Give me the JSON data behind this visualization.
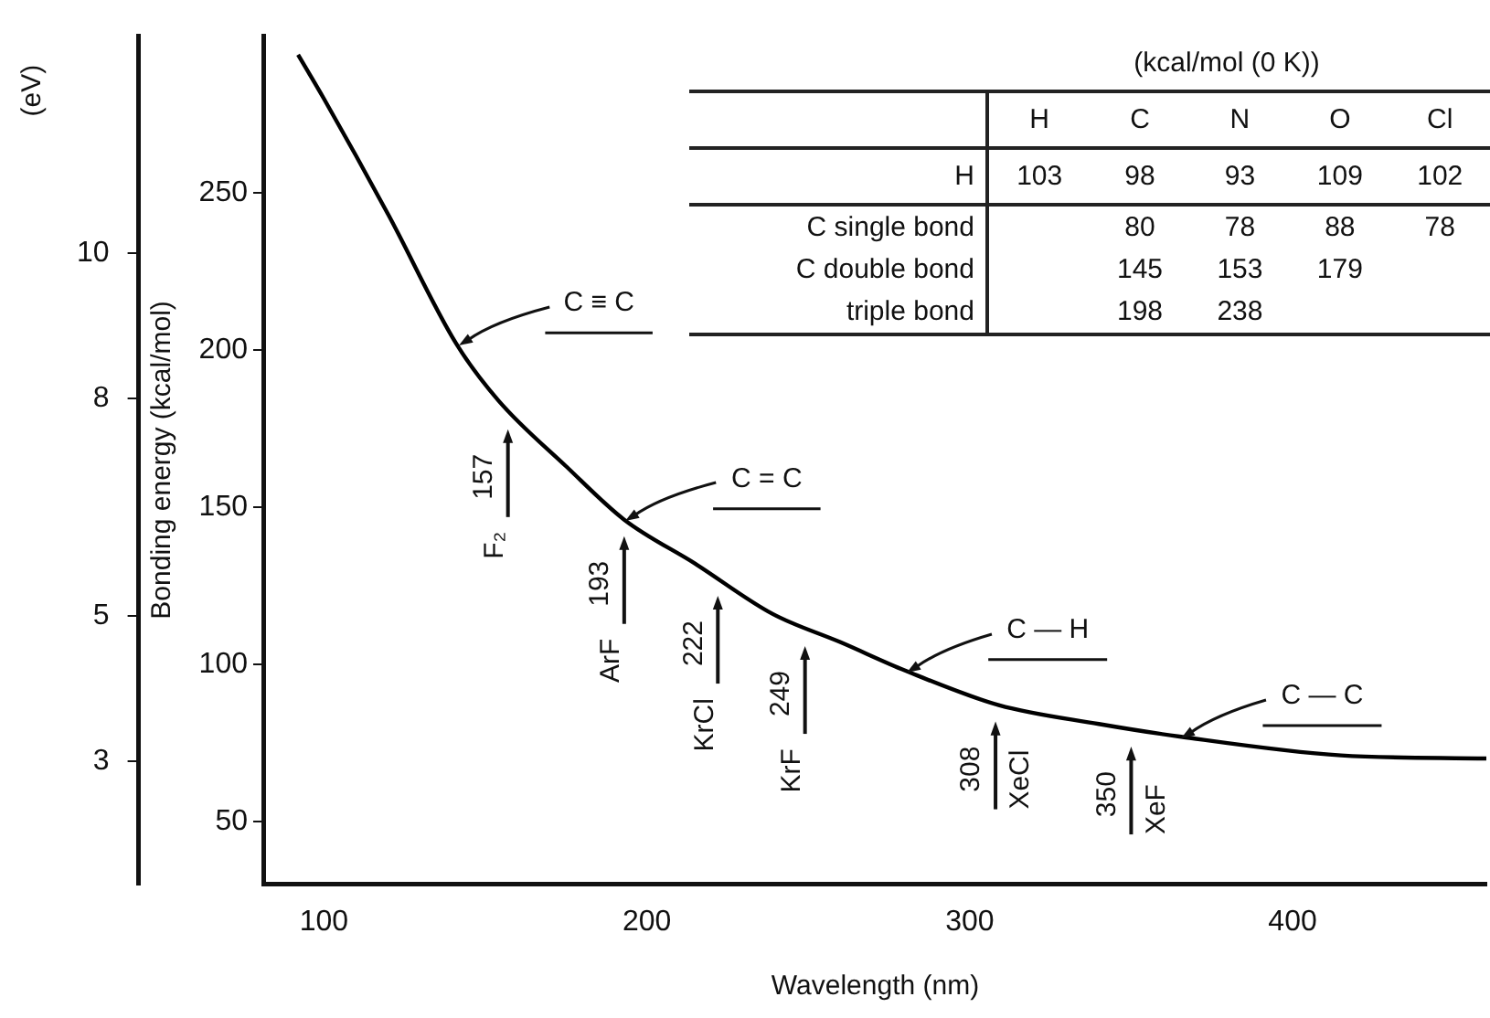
{
  "chart_data": [
    {
      "type": "line",
      "xlabel": "Wavelength (nm)",
      "ylabel": "Bonding energy (kcal/mol)",
      "y2label": "(eV)",
      "x": [
        92,
        100,
        120,
        141,
        154,
        175,
        193,
        215,
        239,
        260,
        280,
        309,
        340,
        365,
        415,
        460
      ],
      "series": [
        {
          "color": "#000000",
          "values": [
            294,
            280,
            243,
            202,
            184,
            163,
            146,
            132,
            116,
            107,
            98,
            87,
            81,
            77,
            71,
            70
          ]
        }
      ],
      "marker": "none",
      "line_style": "solid",
      "xlim": [
        81.5,
        460
      ],
      "xticks": [
        100,
        200,
        300,
        400
      ],
      "ylim": [
        30,
        300
      ],
      "yticks": [
        50,
        100,
        150,
        200,
        250
      ],
      "y2lim": [
        1.3,
        13.0
      ],
      "y2ticks": [
        3,
        5,
        8,
        10
      ],
      "grid": false,
      "legend": false,
      "annotations": [
        {
          "text": "C ≡ C",
          "x": 141,
          "y": 202
        },
        {
          "text": "C = C",
          "x": 193,
          "y": 146
        },
        {
          "text": "C — H",
          "x": 280,
          "y": 98
        },
        {
          "text": "C — C",
          "x": 365,
          "y": 77
        },
        {
          "text": "157",
          "x": 157,
          "y": 180
        },
        "F₂",
        {
          "text": "193",
          "x": 193,
          "y": 146
        },
        "ArF",
        {
          "text": "222",
          "x": 222,
          "y": 127
        },
        "KrCl",
        {
          "text": "249",
          "x": 249,
          "y": 111
        },
        "KrF",
        {
          "text": "308",
          "x": 308,
          "y": 87
        },
        "XeCl",
        {
          "text": "350",
          "x": 350,
          "y": 79
        },
        "XeF"
      ]
    },
    {
      "type": "heatmap",
      "title": "(kcal/mol (0 K))",
      "data_labels": true,
      "categories": [
        "H",
        "C",
        "N",
        "O",
        "Cl"
      ],
      "y_categories": [
        "H",
        "C single bond",
        "C double bond",
        "triple bond"
      ],
      "cells": [
        [
          103,
          98,
          93,
          109,
          102
        ],
        [
          null,
          80,
          78,
          88,
          78
        ],
        [
          null,
          145,
          153,
          179,
          null
        ],
        [
          null,
          198,
          238,
          null,
          null
        ]
      ]
    }
  ]
}
